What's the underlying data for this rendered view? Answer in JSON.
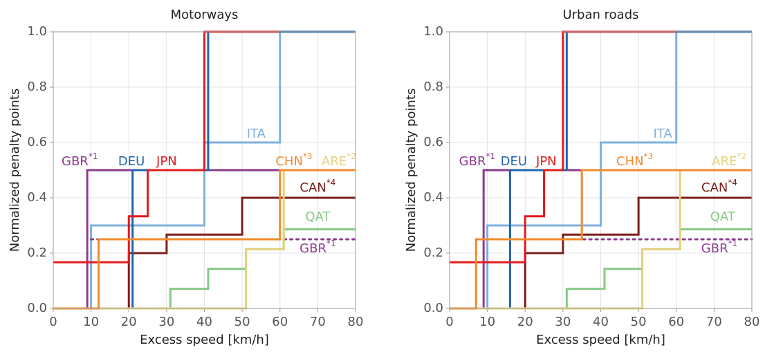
{
  "chart_data": [
    {
      "type": "line",
      "step": "post",
      "title": "Motorways",
      "xlabel": "Excess speed [km/h]",
      "ylabel": "Normalized penalty points",
      "xlim": [
        0,
        80
      ],
      "ylim": [
        0,
        1
      ],
      "xticks": [
        0,
        10,
        20,
        30,
        40,
        50,
        60,
        70,
        80
      ],
      "yticks": [
        {
          "value": 0,
          "label": "0.0"
        },
        0.2,
        0.4,
        0.6,
        0.8,
        {
          "value": 1,
          "label": "1.0"
        }
      ],
      "grid": true,
      "series": [
        {
          "name": "QAT",
          "color": "#86c986",
          "x": [
            0,
            31,
            41,
            51,
            61,
            80
          ],
          "values": [
            0,
            0.071,
            0.143,
            0.214,
            0.286,
            0.286
          ]
        },
        {
          "name": "ITA",
          "color": "#7fb0dd",
          "x": [
            0,
            10,
            40,
            60,
            80
          ],
          "values": [
            0,
            0.3,
            0.6,
            1,
            1
          ]
        },
        {
          "name": "GBR",
          "superscript": "*1",
          "color": "#8b3a8f",
          "x": [
            0,
            9,
            80
          ],
          "values": [
            0,
            0.5,
            0.5
          ]
        },
        {
          "name": "GBR",
          "superscript": "*1",
          "color": "#8b3a8f",
          "dash": "dotted",
          "x": [
            10,
            80
          ],
          "values": [
            0.25,
            0.25
          ]
        },
        {
          "name": "CAN",
          "superscript": "*4",
          "color": "#7a1e1a",
          "x": [
            0,
            20,
            30,
            50,
            80
          ],
          "values": [
            0,
            0.2,
            0.267,
            0.4,
            0.4
          ]
        },
        {
          "name": "DEU",
          "color": "#1f64ad",
          "x": [
            0,
            21,
            41,
            80
          ],
          "values": [
            0,
            0.5,
            1,
            1
          ]
        },
        {
          "name": "JPN",
          "color": "#e3191c",
          "x": [
            0,
            20,
            25,
            40,
            60
          ],
          "values": [
            0.167,
            0.333,
            0.5,
            1,
            1
          ]
        },
        {
          "name": "ARE",
          "superscript": "*2",
          "color": "#e6d17f",
          "x": [
            0,
            51,
            61,
            80
          ],
          "values": [
            0,
            0.214,
            0.5,
            0.5
          ]
        },
        {
          "name": "CHN",
          "superscript": "*3",
          "color": "#f28a2b",
          "x": [
            0,
            12,
            60,
            80
          ],
          "values": [
            0,
            0.25,
            0.5,
            0.5
          ]
        }
      ]
    },
    {
      "type": "line",
      "step": "post",
      "title": "Urban roads",
      "xlabel": "Excess speed [km/h]",
      "ylabel": "Normalized penalty points",
      "xlim": [
        0,
        80
      ],
      "ylim": [
        0,
        1
      ],
      "xticks": [
        0,
        10,
        20,
        30,
        40,
        50,
        60,
        70,
        80
      ],
      "yticks": [
        {
          "value": 0,
          "label": "0.0"
        },
        0.2,
        0.4,
        0.6,
        0.8,
        {
          "value": 1,
          "label": "1.0"
        }
      ],
      "grid": true,
      "series": [
        {
          "name": "QAT",
          "color": "#86c986",
          "x": [
            0,
            31,
            41,
            51,
            61,
            80
          ],
          "values": [
            0,
            0.071,
            0.143,
            0.214,
            0.286,
            0.286
          ]
        },
        {
          "name": "ITA",
          "color": "#7fb0dd",
          "x": [
            0,
            10,
            40,
            60,
            80
          ],
          "values": [
            0,
            0.3,
            0.6,
            1,
            1
          ]
        },
        {
          "name": "GBR",
          "superscript": "*1",
          "color": "#8b3a8f",
          "x": [
            0,
            9,
            80
          ],
          "values": [
            0,
            0.5,
            0.5
          ]
        },
        {
          "name": "GBR",
          "superscript": "*1",
          "color": "#8b3a8f",
          "dash": "dotted",
          "x": [
            9,
            80
          ],
          "values": [
            0.25,
            0.25
          ]
        },
        {
          "name": "CAN",
          "superscript": "*4",
          "color": "#7a1e1a",
          "x": [
            0,
            20,
            30,
            50,
            80
          ],
          "values": [
            0,
            0.2,
            0.267,
            0.4,
            0.4
          ]
        },
        {
          "name": "DEU",
          "color": "#1f64ad",
          "x": [
            0,
            16,
            31,
            80
          ],
          "values": [
            0,
            0.5,
            1,
            1
          ]
        },
        {
          "name": "JPN",
          "color": "#e3191c",
          "x": [
            0,
            20,
            25,
            30,
            60
          ],
          "values": [
            0.167,
            0.333,
            0.5,
            1,
            1
          ]
        },
        {
          "name": "ARE",
          "superscript": "*2",
          "color": "#e6d17f",
          "x": [
            0,
            51,
            61,
            80
          ],
          "values": [
            0,
            0.214,
            0.5,
            0.5
          ]
        },
        {
          "name": "CHN",
          "superscript": "*3",
          "color": "#f28a2b",
          "x": [
            0,
            7,
            35,
            80
          ],
          "values": [
            0,
            0.25,
            0.5,
            0.5
          ]
        }
      ]
    }
  ]
}
